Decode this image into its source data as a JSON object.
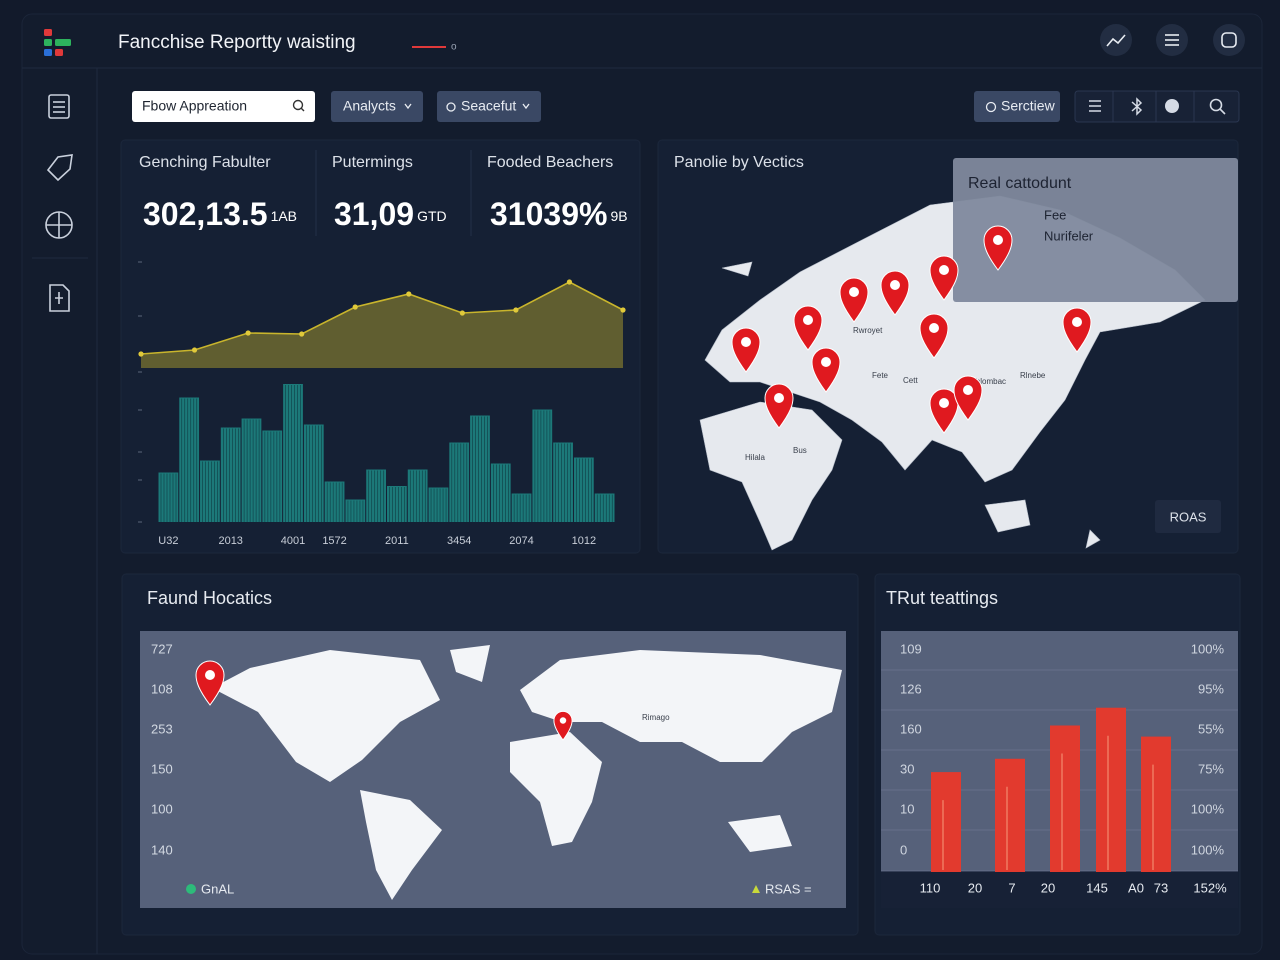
{
  "header": {
    "title": "Fancchise Reportty waisting",
    "badge": "o"
  },
  "toolbar": {
    "search": "Fbow Appreation",
    "filters": [
      "Analycts",
      "Seacefut"
    ],
    "action": "Serctiew"
  },
  "kpis": [
    {
      "label": "Genching Fabulter",
      "value": "302,13.5",
      "unit": "1AB"
    },
    {
      "label": "Putermings",
      "value": "31,09",
      "unit": "GTD"
    },
    {
      "label": "Fooded Beachers",
      "value": "31039%",
      "unit": "9B"
    }
  ],
  "maps": [
    {
      "title": "Panolie by Vectics",
      "popup": {
        "title": "Real cattodunt",
        "lines": [
          "Fee",
          "Nurifeler"
        ]
      },
      "labels": [
        "Rwroyet",
        "Fete",
        "Cett",
        "Rblombac",
        "Rlnebe",
        "Bus",
        "Hilala"
      ],
      "badge": "ROAS"
    },
    {
      "title": "Faund Hocatics",
      "axis_labels": [
        727,
        108,
        253,
        150,
        100,
        140
      ],
      "labels": [
        "Rimago"
      ],
      "legend": [
        "GnAL",
        "RSAS ="
      ]
    }
  ],
  "chart_data": [
    {
      "type": "area",
      "values": [
        14,
        18,
        35,
        34,
        61,
        74,
        55,
        58,
        86,
        58
      ],
      "color": "#c9b52c",
      "ylim": [
        0,
        100
      ]
    },
    {
      "type": "bar",
      "categories": [
        "U32",
        null,
        null,
        "2013",
        null,
        null,
        "4001",
        null,
        "1572",
        null,
        null,
        "2011",
        null,
        null,
        "3454",
        null,
        null,
        "2074",
        null,
        null,
        "1012",
        null
      ],
      "values": [
        33,
        83,
        41,
        63,
        69,
        61,
        92,
        65,
        27,
        15,
        35,
        24,
        35,
        23,
        53,
        71,
        39,
        19,
        75,
        53,
        43,
        19
      ],
      "color": "#1d8a86",
      "ylim": [
        0,
        100
      ]
    },
    {
      "type": "bar",
      "title": "TRut teattings",
      "values": [
        45,
        51,
        66,
        74,
        61
      ],
      "color": "#e23a2e",
      "ylim": [
        0,
        100
      ],
      "y_labels": [
        109,
        126,
        160,
        30,
        10,
        0
      ],
      "y2_labels": [
        "100%",
        "95%",
        "55%",
        "75%",
        "100%",
        "100%"
      ],
      "x_labels": [
        "110",
        "20",
        "7",
        "20",
        "145",
        "A0",
        "73",
        "152%"
      ]
    }
  ]
}
